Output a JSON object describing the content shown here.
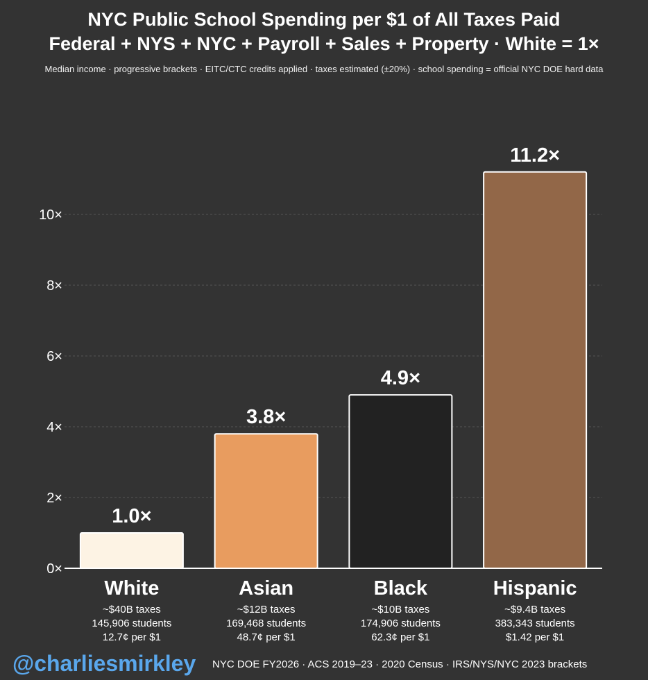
{
  "chart_data": {
    "type": "bar",
    "title": "NYC Public School Spending per $1 of All Taxes Paid",
    "subtitle": "Federal + NYS + NYC + Payroll + Sales + Property · White = 1×",
    "note": "Median income · progressive brackets · EITC/CTC credits applied · taxes estimated (±20%) · school spending = official NYC DOE hard data",
    "categories": [
      "White",
      "Asian",
      "Black",
      "Hispanic"
    ],
    "values": [
      1.0,
      3.8,
      4.9,
      11.2
    ],
    "value_labels": [
      "1.0×",
      "3.8×",
      "4.9×",
      "11.2×"
    ],
    "bar_colors": [
      "#fdf3e4",
      "#e89c5f",
      "#222222",
      "#926748"
    ],
    "details": [
      [
        "~$40B taxes",
        "145,906 students",
        "12.7¢ per $1"
      ],
      [
        "~$12B taxes",
        "169,468 students",
        "48.7¢ per $1"
      ],
      [
        "~$10B taxes",
        "174,906 students",
        "62.3¢ per $1"
      ],
      [
        "~$9.4B taxes",
        "383,343 students",
        "$1.42 per $1"
      ]
    ],
    "yticks": [
      0,
      2,
      4,
      6,
      8,
      10
    ],
    "ytick_labels": [
      "0×",
      "2×",
      "4×",
      "6×",
      "8×",
      "10×"
    ],
    "ylim": [
      0,
      11.2
    ],
    "grid": true,
    "xlabel": "",
    "ylabel": ""
  },
  "footer": {
    "handle": "@charliesmirkley",
    "sources": "NYC DOE FY2026 · ACS 2019–23 · 2020 Census · IRS/NYS/NYC 2023 brackets"
  }
}
